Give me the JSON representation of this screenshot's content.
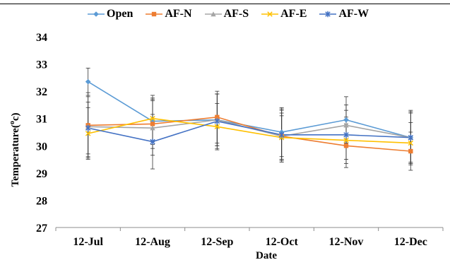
{
  "chart_data": {
    "type": "line",
    "title": "",
    "xlabel": "Date",
    "ylabel": "Temperature(°c)",
    "ylabel_parts": {
      "main": "Temperature(",
      "sup": "o",
      "unit": "c)"
    },
    "categories": [
      "12-Jul",
      "12-Aug",
      "12-Sep",
      "12-Oct",
      "12-Nov",
      "12-Dec"
    ],
    "ylim": [
      27,
      34
    ],
    "yticks": [
      27,
      28,
      29,
      30,
      31,
      32,
      33,
      34
    ],
    "grid": false,
    "legend_position": "top",
    "error_bars": true,
    "series": [
      {
        "name": "Open",
        "color": "#5b9bd5",
        "marker": "diamond",
        "values": [
          32.35,
          30.9,
          30.95,
          30.5,
          30.95,
          30.3
        ],
        "errors": [
          0.5,
          0.85,
          0.95,
          0.9,
          0.85,
          1.0
        ]
      },
      {
        "name": "AF-N",
        "color": "#ed7d31",
        "marker": "square",
        "values": [
          30.75,
          30.8,
          31.05,
          30.35,
          30.0,
          29.8
        ],
        "errors": [
          1.2,
          0.9,
          0.95,
          0.95,
          0.8,
          0.7
        ]
      },
      {
        "name": "AF-S",
        "color": "#a5a5a5",
        "marker": "triangle",
        "values": [
          30.7,
          30.65,
          30.95,
          30.35,
          30.75,
          30.3
        ],
        "errors": [
          1.1,
          1.0,
          0.95,
          0.85,
          0.75,
          0.9
        ]
      },
      {
        "name": "AF-E",
        "color": "#ffc000",
        "marker": "x",
        "values": [
          30.45,
          31.0,
          30.7,
          30.3,
          30.2,
          30.1
        ],
        "errors": [
          0.95,
          0.85,
          0.85,
          0.8,
          0.85,
          0.75
        ]
      },
      {
        "name": "AF-W",
        "color": "#4472c4",
        "marker": "star",
        "values": [
          30.65,
          30.15,
          30.9,
          30.4,
          30.4,
          30.3
        ],
        "errors": [
          0.95,
          1.0,
          1.0,
          0.95,
          0.9,
          0.95
        ]
      }
    ]
  }
}
